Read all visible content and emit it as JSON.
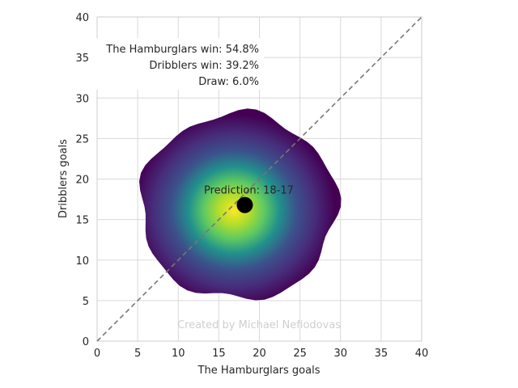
{
  "chart_data": {
    "type": "heatmap",
    "xlabel": "The Hamburglars goals",
    "ylabel": "Dribblers goals",
    "xlim": [
      0,
      40
    ],
    "ylim": [
      0,
      40
    ],
    "xticks": [
      0,
      5,
      10,
      15,
      20,
      25,
      30,
      35,
      40
    ],
    "yticks": [
      0,
      5,
      10,
      15,
      20,
      25,
      30,
      35,
      40
    ],
    "grid": true,
    "colormap": "viridis",
    "density_center": [
      17.4,
      16.6
    ],
    "density_extent": {
      "x": [
        7.0,
        31.2
      ],
      "y": [
        6.2,
        29.2
      ]
    },
    "prediction_point": {
      "x": 18.2,
      "y": 16.8,
      "label": "Prediction: 18-17"
    },
    "diagonal": {
      "from": [
        0,
        0
      ],
      "to": [
        40,
        40
      ],
      "style": "dashed"
    },
    "stats": [
      "The Hamburglars win: 54.8%",
      "Dribblers win: 39.2%",
      "Draw: 6.0%"
    ],
    "watermark": "Created by Michael Nefiodovas"
  }
}
